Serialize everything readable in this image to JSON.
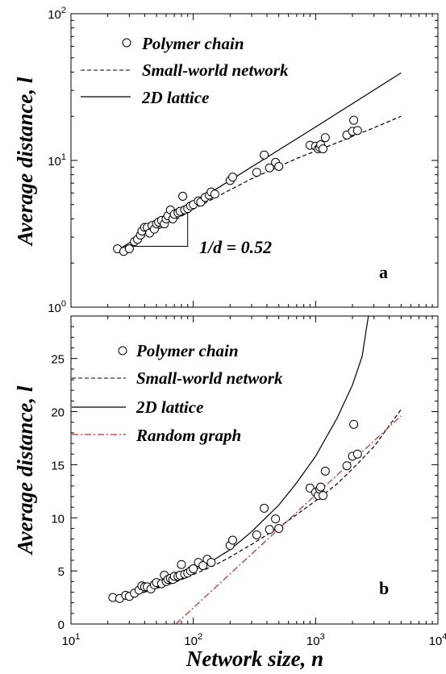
{
  "chart_data": [
    {
      "panel": "a",
      "type": "line",
      "xlabel": "",
      "ylabel": "Average distance, l",
      "xscale": "log",
      "yscale": "log",
      "xlim": [
        10,
        10000
      ],
      "ylim": [
        1,
        100
      ],
      "x_ticks": [
        "10^1",
        "10^2",
        "10^3",
        "10^4"
      ],
      "y_ticks": [
        "10^0",
        "10^1",
        "10^2"
      ],
      "annotation": "1/d = 0.52",
      "legend_position": "top-left",
      "series": [
        {
          "name": "Polymer chain",
          "kind": "scatter",
          "marker": "open-circle",
          "x": [
            24,
            27,
            30,
            33,
            35,
            37,
            38,
            40,
            42,
            44,
            46,
            48,
            50,
            52,
            55,
            58,
            60,
            62,
            65,
            68,
            70,
            75,
            78,
            82,
            85,
            90,
            95,
            100,
            110,
            115,
            125,
            135,
            140,
            150,
            200,
            210,
            330,
            380,
            420,
            470,
            500,
            900,
            1000,
            1050,
            1080,
            1100,
            1150,
            1200,
            1800,
            2000,
            2050,
            2200
          ],
          "y": [
            2.5,
            2.4,
            2.5,
            2.8,
            2.9,
            3.1,
            3.3,
            3.5,
            3.5,
            3.2,
            3.6,
            3.4,
            3.7,
            3.8,
            3.9,
            3.7,
            4.0,
            4.2,
            4.6,
            4.0,
            4.3,
            4.4,
            4.5,
            5.7,
            4.6,
            4.7,
            4.9,
            5.0,
            5.3,
            5.2,
            5.6,
            5.8,
            6.1,
            5.9,
            7.3,
            7.7,
            8.3,
            10.9,
            8.9,
            9.7,
            9.1,
            12.7,
            12.5,
            12.0,
            12.3,
            12.8,
            12.0,
            14.3,
            14.9,
            15.8,
            18.8,
            16.0
          ]
        },
        {
          "name": "Small-world network",
          "kind": "line",
          "style": "dashed",
          "x": [
            25,
            30,
            40,
            50,
            70,
            100,
            150,
            200,
            300,
            500,
            700,
            1000,
            1500,
            2000,
            3000,
            5000
          ],
          "y": [
            2.4,
            2.65,
            3.05,
            3.35,
            3.9,
            4.65,
            5.55,
            6.3,
            7.5,
            9.1,
            10.3,
            11.6,
            13.2,
            14.6,
            16.7,
            20.0
          ]
        },
        {
          "name": "2D lattice",
          "kind": "line",
          "style": "solid",
          "x": [
            25,
            100,
            1000,
            5000
          ],
          "y": [
            2.5,
            5.1,
            16.9,
            39.5
          ]
        }
      ],
      "slope_triangle": {
        "x1": 27,
        "x2": 90,
        "y": 2.6
      }
    },
    {
      "panel": "b",
      "type": "line",
      "xlabel": "Network size, n",
      "ylabel": "Average distance, l",
      "xscale": "log",
      "yscale": "linear",
      "xlim": [
        10,
        10000
      ],
      "ylim": [
        0,
        29
      ],
      "x_ticks": [
        "10^1",
        "10^2",
        "10^3",
        "10^4"
      ],
      "y_ticks": [
        "0",
        "5",
        "10",
        "15",
        "20",
        "25"
      ],
      "legend_position": "top-left",
      "series": [
        {
          "name": "Polymer chain",
          "kind": "scatter",
          "marker": "open-circle",
          "x": [
            22,
            25,
            28,
            30,
            33,
            36,
            38,
            40,
            42,
            45,
            48,
            50,
            55,
            58,
            60,
            62,
            65,
            68,
            70,
            75,
            78,
            80,
            85,
            90,
            95,
            100,
            110,
            120,
            130,
            140,
            200,
            210,
            330,
            380,
            420,
            470,
            500,
            900,
            1000,
            1050,
            1080,
            1100,
            1150,
            1200,
            1800,
            2000,
            2050,
            2200
          ],
          "y": [
            2.5,
            2.4,
            2.7,
            2.6,
            2.9,
            3.2,
            3.6,
            3.5,
            3.5,
            3.3,
            3.7,
            3.9,
            3.8,
            4.6,
            4.0,
            4.2,
            4.3,
            4.2,
            4.5,
            4.5,
            4.6,
            5.6,
            4.7,
            4.8,
            5.0,
            5.2,
            5.8,
            5.5,
            6.1,
            5.8,
            7.4,
            7.9,
            8.4,
            10.9,
            8.9,
            9.9,
            9.0,
            12.8,
            12.4,
            12.1,
            12.7,
            12.9,
            12.1,
            14.4,
            14.9,
            15.8,
            18.8,
            16.0
          ]
        },
        {
          "name": "Small-world network",
          "kind": "line",
          "style": "dashed",
          "x": [
            25,
            30,
            40,
            50,
            70,
            100,
            150,
            200,
            300,
            500,
            700,
            1000,
            1500,
            2000,
            3000,
            5000
          ],
          "y": [
            2.4,
            2.65,
            3.05,
            3.35,
            3.9,
            4.65,
            5.55,
            6.3,
            7.5,
            9.1,
            10.3,
            11.6,
            13.2,
            14.6,
            16.7,
            20.2
          ]
        },
        {
          "name": "2D lattice",
          "kind": "line",
          "style": "solid",
          "x": [
            25,
            40,
            60,
            100,
            150,
            200,
            300,
            500,
            700,
            1000,
            1500,
            2000,
            2400,
            2700
          ],
          "y": [
            2.5,
            3.0,
            3.7,
            5.0,
            6.1,
            7.0,
            8.7,
            11.2,
            13.3,
            15.8,
            19.4,
            22.5,
            25.2,
            29.0
          ]
        },
        {
          "name": "Random graph",
          "kind": "line",
          "style": "dash-dot",
          "color": "#d42020",
          "x": [
            72,
            5000
          ],
          "y": [
            0,
            19.6
          ]
        }
      ]
    }
  ]
}
